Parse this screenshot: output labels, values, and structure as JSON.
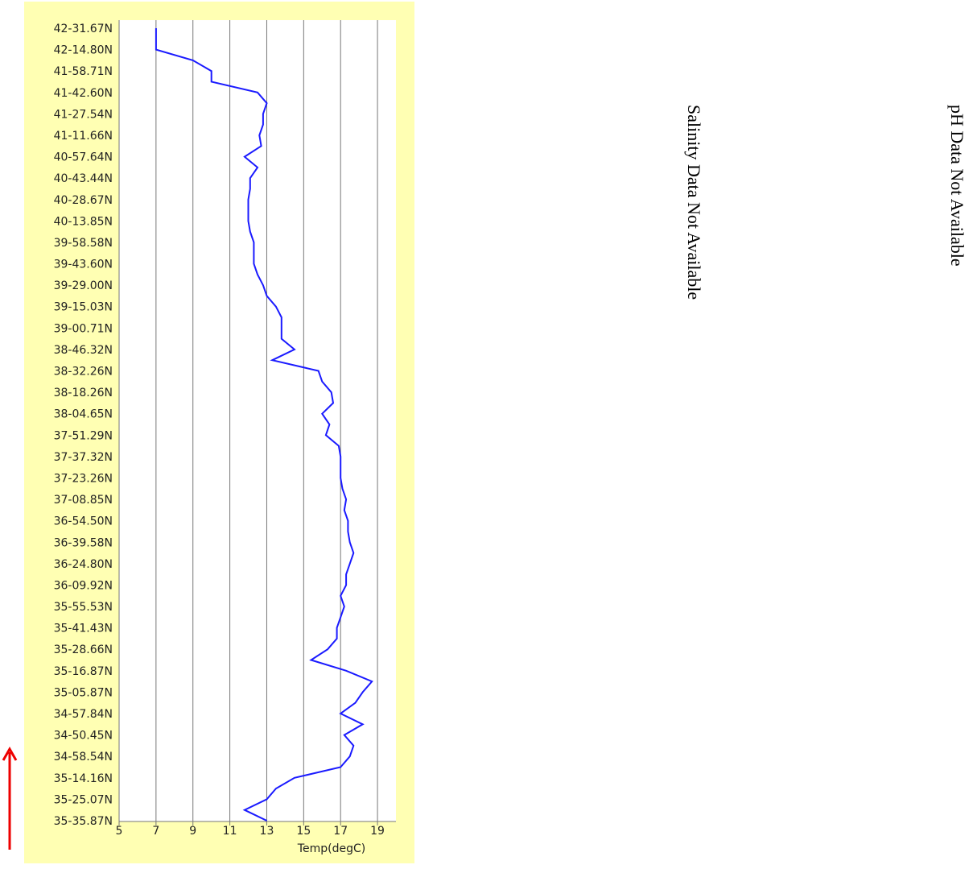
{
  "chart_data": {
    "type": "line",
    "xlabel": "Temp(degC)",
    "categories": [
      "35-35.87N",
      null,
      "35-25.07N",
      null,
      "35-14.16N",
      null,
      "34-58.54N",
      null,
      "34-50.45N",
      null,
      "34-57.84N",
      null,
      "35-05.87N",
      null,
      "35-16.87N",
      null,
      "35-28.66N",
      null,
      "35-41.43N",
      null,
      "35-55.53N",
      null,
      "36-09.92N",
      null,
      "36-24.80N",
      null,
      "36-39.58N",
      null,
      "36-54.50N",
      null,
      "37-08.85N",
      null,
      "37-23.26N",
      null,
      "37-37.32N",
      null,
      "37-51.29N",
      null,
      "38-04.65N",
      null,
      "38-18.26N",
      null,
      "38-32.26N",
      null,
      "38-46.32N",
      null,
      "39-00.71N",
      null,
      "39-15.03N",
      null,
      "39-29.00N",
      null,
      "39-43.60N",
      null,
      "39-58.58N",
      null,
      "40-13.85N",
      null,
      "40-28.67N",
      null,
      "40-43.44N",
      null,
      "40-57.64N",
      null,
      "41-11.66N",
      null,
      "41-27.54N",
      null,
      "41-42.60N",
      null,
      "41-58.71N",
      null,
      "42-14.80N",
      null,
      "42-31.67N"
    ],
    "values": [
      13,
      11.8,
      13,
      13.5,
      14.5,
      17,
      17.5,
      17.7,
      17.2,
      18.2,
      17.0,
      17.8,
      18.2,
      18.7,
      17.3,
      15.4,
      16.3,
      16.8,
      16.8,
      17,
      17.2,
      17,
      17.3,
      17.3,
      17.5,
      17.7,
      17.5,
      17.4,
      17.4,
      17.2,
      17.3,
      17.1,
      17.0,
      17.0,
      17.0,
      16.9,
      16.2,
      16.4,
      16.0,
      16.6,
      16.5,
      16.0,
      15.8,
      13.3,
      14.5,
      13.8,
      13.8,
      13.8,
      13.5,
      13.0,
      12.8,
      12.5,
      12.3,
      12.3,
      12.3,
      12.1,
      12.0,
      12.0,
      12.0,
      12.1,
      12.1,
      12.5,
      11.8,
      12.7,
      12.6,
      12.8,
      12.8,
      13.0,
      12.5,
      10.0,
      10.0,
      9.0,
      7.0,
      7.0,
      7.0
    ],
    "color": "#1a1aff",
    "xlim": [
      5,
      20
    ],
    "xticks": [
      5,
      7,
      9,
      11,
      13,
      15,
      17,
      19
    ],
    "grid": true,
    "notes": [
      "Salinity Data Not Available",
      "pH Data Not Available"
    ]
  }
}
